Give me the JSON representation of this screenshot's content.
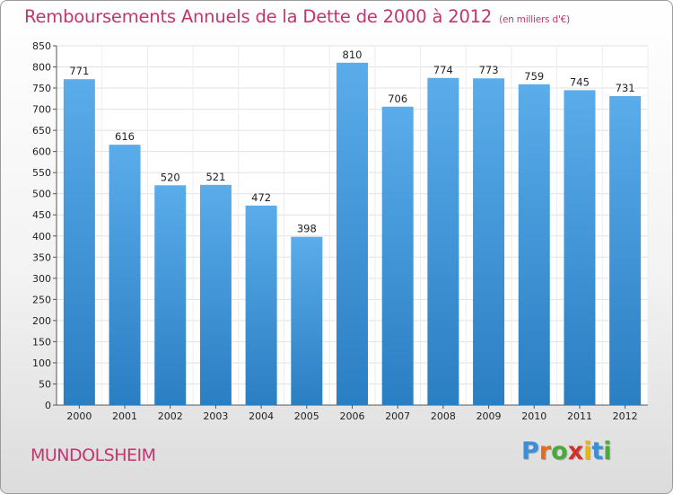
{
  "title": "Remboursements Annuels de la Dette de 2000 à 2012",
  "subtitle": "(en milliers d'€)",
  "city": "MUNDOLSHEIM",
  "logo": {
    "letters": [
      "P",
      "r",
      "o",
      "x",
      "i",
      "t",
      "i"
    ],
    "colors": [
      "#3a8fd6",
      "#e46c1f",
      "#4aa83c",
      "#d22f2f",
      "#e8b415",
      "#3a8fd6",
      "#4aa83c"
    ]
  },
  "colors": {
    "bar_light": "#5aacea",
    "bar_dark": "#2a7ec2",
    "accent": "#c2366e"
  },
  "chart_data": {
    "type": "bar",
    "categories": [
      "2000",
      "2001",
      "2002",
      "2003",
      "2004",
      "2005",
      "2006",
      "2007",
      "2008",
      "2009",
      "2010",
      "2011",
      "2012"
    ],
    "values": [
      771,
      616,
      520,
      521,
      472,
      398,
      810,
      706,
      774,
      773,
      759,
      745,
      731
    ],
    "value_labels": [
      "771",
      "616",
      "520",
      "521",
      "472",
      "398",
      "810",
      "706",
      "774",
      "773",
      "759",
      "745",
      "731"
    ],
    "title": "Remboursements Annuels de la Dette de 2000 à 2012",
    "ylim": [
      0,
      850
    ],
    "yticks": [
      "0",
      "50",
      "100",
      "150",
      "200",
      "250",
      "300",
      "350",
      "400",
      "450",
      "500",
      "550",
      "600",
      "650",
      "700",
      "750",
      "800",
      "850"
    ],
    "grid": true
  }
}
